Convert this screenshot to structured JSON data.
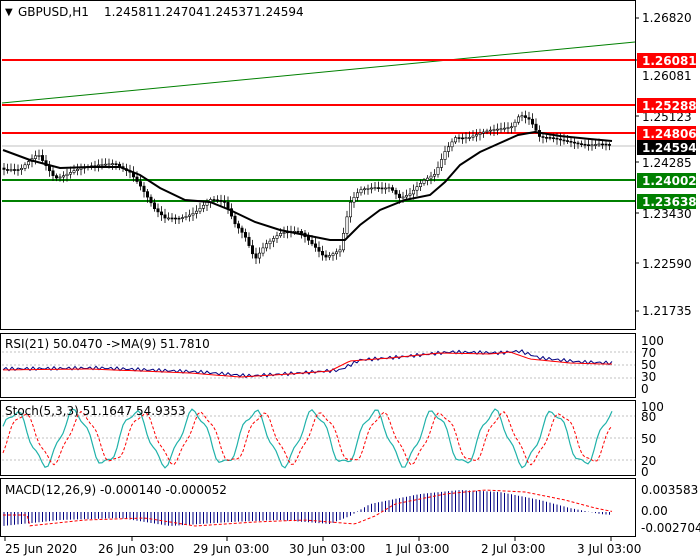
{
  "main": {
    "symbol_label": "GBPUSD,H1",
    "ohlc": [
      "1.24581",
      "1.24704",
      "1.24537",
      "1.24594"
    ],
    "price_ticks": [
      "1.26820",
      "1.26081",
      "1.25123",
      "1.24285",
      "1.23430",
      "1.22590",
      "1.21735"
    ],
    "tags": [
      {
        "text": "1.26081",
        "kind": "resistance"
      },
      {
        "text": "1.25288",
        "kind": "resistance"
      },
      {
        "text": "1.24806",
        "kind": "resistance"
      },
      {
        "text": "1.24594",
        "kind": "current"
      },
      {
        "text": "1.24002",
        "kind": "support"
      },
      {
        "text": "1.23638",
        "kind": "support"
      }
    ],
    "colors": {
      "resistance": "#ff0000",
      "support": "#008000",
      "current": "#000000",
      "trend": "#008000",
      "ma": "#000000"
    }
  },
  "rsi": {
    "label": "RSI(21) 50.0470  ->MA(9) 51.7810",
    "ticks": [
      "100",
      "70",
      "50",
      "30",
      "0"
    ],
    "colors": {
      "rsi": "#000080",
      "ma": "#ff0000"
    }
  },
  "stoch": {
    "label": "Stoch(5,3,3) 51.1647 54.9353",
    "ticks": [
      "100",
      "80",
      "50",
      "20",
      "0"
    ],
    "colors": {
      "main": "#20b2aa",
      "signal": "#ff0000"
    }
  },
  "macd": {
    "label": "MACD(12,26,9) -0.000140 -0.000052",
    "ticks": [
      "0.003583",
      "0.00",
      "-0.002704"
    ],
    "colors": {
      "hist": "#000080",
      "signal": "#ff0000"
    }
  },
  "time_axis": [
    "25 Jun 2020",
    "26 Jun 03:00",
    "29 Jun 03:00",
    "30 Jun 03:00",
    "1 Jul 03:00",
    "2 Jul 03:00",
    "3 Jul 03:00"
  ]
}
